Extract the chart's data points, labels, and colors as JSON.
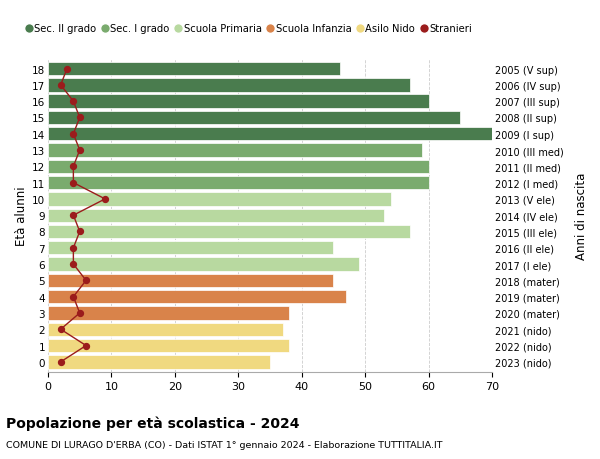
{
  "ages": [
    18,
    17,
    16,
    15,
    14,
    13,
    12,
    11,
    10,
    9,
    8,
    7,
    6,
    5,
    4,
    3,
    2,
    1,
    0
  ],
  "years": [
    "2005 (V sup)",
    "2006 (IV sup)",
    "2007 (III sup)",
    "2008 (II sup)",
    "2009 (I sup)",
    "2010 (III med)",
    "2011 (II med)",
    "2012 (I med)",
    "2013 (V ele)",
    "2014 (IV ele)",
    "2015 (III ele)",
    "2016 (II ele)",
    "2017 (I ele)",
    "2018 (mater)",
    "2019 (mater)",
    "2020 (mater)",
    "2021 (nido)",
    "2022 (nido)",
    "2023 (nido)"
  ],
  "bar_values": [
    46,
    57,
    60,
    65,
    70,
    59,
    60,
    60,
    54,
    53,
    57,
    45,
    49,
    45,
    47,
    38,
    37,
    38,
    35
  ],
  "bar_colors": [
    "#4a7c4e",
    "#4a7c4e",
    "#4a7c4e",
    "#4a7c4e",
    "#4a7c4e",
    "#7aab6e",
    "#7aab6e",
    "#7aab6e",
    "#b8d9a0",
    "#b8d9a0",
    "#b8d9a0",
    "#b8d9a0",
    "#b8d9a0",
    "#d9834a",
    "#d9834a",
    "#d9834a",
    "#f0d980",
    "#f0d980",
    "#f0d980"
  ],
  "stranieri": [
    3,
    2,
    4,
    5,
    4,
    5,
    4,
    4,
    9,
    4,
    5,
    4,
    4,
    6,
    4,
    5,
    2,
    6,
    2
  ],
  "title": "Popolazione per età scolastica - 2024",
  "subtitle": "COMUNE DI LURAGO D'ERBA (CO) - Dati ISTAT 1° gennaio 2024 - Elaborazione TUTTITALIA.IT",
  "ylabel_left": "Età alunni",
  "ylabel_right": "Anni di nascita",
  "xlim": [
    0,
    70
  ],
  "xticks": [
    0,
    10,
    20,
    30,
    40,
    50,
    60,
    70
  ],
  "legend_labels": [
    "Sec. II grado",
    "Sec. I grado",
    "Scuola Primaria",
    "Scuola Infanzia",
    "Asilo Nido",
    "Stranieri"
  ],
  "legend_colors": [
    "#4a7c4e",
    "#7aab6e",
    "#b8d9a0",
    "#d9834a",
    "#f0d980",
    "#9b1c1c"
  ],
  "bg_color": "#ffffff",
  "bar_height": 0.82,
  "grid_color": "#cccccc",
  "stranieri_color": "#9b1c1c"
}
